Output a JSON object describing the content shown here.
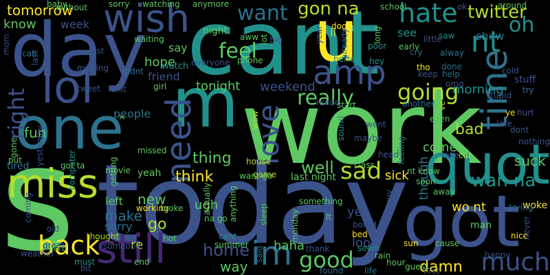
{
  "words": [
    {
      "text": "today",
      "color": "#3b528b"
    },
    {
      "text": "work",
      "color": "#5ec962"
    },
    {
      "text": "cant",
      "color": "#21918c"
    },
    {
      "text": "day",
      "color": "#3b528b"
    },
    {
      "text": "u",
      "color": "#fde725"
    },
    {
      "text": "got",
      "color": "#3b528b"
    },
    {
      "text": "one",
      "color": "#2c728e"
    },
    {
      "text": "s",
      "color": "#5ec962"
    },
    {
      "text": "miss",
      "color": "#b5de2b"
    },
    {
      "text": "quot",
      "color": "#21918c"
    },
    {
      "text": "wish",
      "color": "#3b528b"
    },
    {
      "text": "m",
      "color": "#21918c"
    },
    {
      "text": "lol",
      "color": "#3b528b"
    },
    {
      "text": "still",
      "color": "#482878"
    },
    {
      "text": "time",
      "color": "#2c728e"
    },
    {
      "text": "nt",
      "color": "#21918c"
    },
    {
      "text": "amp",
      "color": "#3b528b"
    },
    {
      "text": "love",
      "color": "#3b528b"
    },
    {
      "text": "need",
      "color": "#3b528b"
    },
    {
      "text": "going",
      "color": "#b5de2b"
    },
    {
      "text": "back",
      "color": "#fde725"
    },
    {
      "text": "good",
      "color": "#5ec962"
    },
    {
      "text": "much",
      "color": "#3b528b"
    },
    {
      "text": "im",
      "color": "#2c728e"
    },
    {
      "text": "hate",
      "color": "#21918c"
    },
    {
      "text": "twitter",
      "color": "#b5de2b"
    },
    {
      "text": "oh",
      "color": "#21918c"
    },
    {
      "text": "want",
      "color": "#2c728e"
    },
    {
      "text": "gon na",
      "color": "#b5de2b"
    },
    {
      "text": "feel",
      "color": "#5ec962"
    },
    {
      "text": "sad",
      "color": "#b5de2b"
    },
    {
      "text": "really",
      "color": "#5ec962"
    },
    {
      "text": "right",
      "color": "#3b528b"
    },
    {
      "text": "fun",
      "color": "#5ec962"
    },
    {
      "text": "think",
      "color": "#fde725"
    },
    {
      "text": "thing",
      "color": "#5ec962"
    },
    {
      "text": "well",
      "color": "#5ec962"
    },
    {
      "text": "home",
      "color": "#3b528b"
    },
    {
      "text": "wan na",
      "color": "#21918c"
    },
    {
      "text": "tomorrow",
      "color": "#fde725"
    },
    {
      "text": "know",
      "color": "#5ec962"
    },
    {
      "text": "bad",
      "color": "#b5de2b"
    },
    {
      "text": "new",
      "color": "#5ec962"
    },
    {
      "text": "make",
      "color": "#2c728e"
    },
    {
      "text": "go",
      "color": "#b5de2b"
    },
    {
      "text": "sorry",
      "color": "#2c728e"
    },
    {
      "text": "ugh",
      "color": "#5ec962"
    },
    {
      "text": "tonight",
      "color": "#5ec962"
    },
    {
      "text": "friend",
      "color": "#3b528b"
    },
    {
      "text": "hope",
      "color": "#5ec962"
    },
    {
      "text": "say",
      "color": "#5ec962"
    },
    {
      "text": "week",
      "color": "#3b528b"
    },
    {
      "text": "weekend",
      "color": "#3b528b"
    },
    {
      "text": "morning",
      "color": "#21918c"
    },
    {
      "text": "people",
      "color": "#2c728e"
    },
    {
      "text": "sick",
      "color": "#fde725"
    },
    {
      "text": "suck",
      "color": "#5ec962"
    },
    {
      "text": "come",
      "color": "#5ec962"
    },
    {
      "text": "though",
      "color": "#2c728e"
    },
    {
      "text": "wo nt",
      "color": "#fde725"
    },
    {
      "text": "yet",
      "color": "#3b528b"
    },
    {
      "text": "look",
      "color": "#3b528b"
    },
    {
      "text": "haha",
      "color": "#5ec962"
    },
    {
      "text": "damn",
      "color": "#fde725"
    },
    {
      "text": "way",
      "color": "#5ec962"
    },
    {
      "text": "left",
      "color": "#5ec962"
    },
    {
      "text": "tired",
      "color": "#2c728e"
    },
    {
      "text": "yeah",
      "color": "#5ec962"
    },
    {
      "text": "re",
      "color": "#b5de2b"
    },
    {
      "text": "night",
      "color": "#5ec962"
    },
    {
      "text": "see",
      "color": "#21918c"
    },
    {
      "text": "show",
      "color": "#2c728e"
    },
    {
      "text": "ll",
      "color": "#b5de2b"
    },
    {
      "text": "watch",
      "color": "#21918c"
    },
    {
      "text": "working",
      "color": "#fde725"
    },
    {
      "text": "woke",
      "color": "#fde725"
    },
    {
      "text": "happy",
      "color": "#3b528b"
    },
    {
      "text": "sun",
      "color": "#fde725"
    },
    {
      "text": "last night",
      "color": "#5ec962"
    },
    {
      "text": "something",
      "color": "#5ec962"
    },
    {
      "text": "cant",
      "color": "#21918c"
    },
    {
      "text": "bored",
      "color": "#3b528b"
    },
    {
      "text": "game",
      "color": "#b5de2b"
    },
    {
      "text": "house",
      "color": "#b5de2b"
    },
    {
      "text": "missed",
      "color": "#5ec962"
    },
    {
      "text": "movie",
      "color": "#5ec962"
    },
    {
      "text": "got ta",
      "color": "#5ec962"
    },
    {
      "text": "trying",
      "color": "#2c728e"
    },
    {
      "text": "late",
      "color": "#3b528b"
    },
    {
      "text": "better",
      "color": "#21918c"
    },
    {
      "text": "hey",
      "color": "#21918c"
    },
    {
      "text": "dog",
      "color": "#fde725"
    },
    {
      "text": "long",
      "color": "#5ec962"
    },
    {
      "text": "tho",
      "color": "#fde725"
    },
    {
      "text": "phone",
      "color": "#5ec962"
    },
    {
      "text": "school",
      "color": "#5ec962"
    },
    {
      "text": "already",
      "color": "#2c728e"
    },
    {
      "text": "poor",
      "color": "#21918c"
    },
    {
      "text": "early",
      "color": "#5ec962"
    },
    {
      "text": "cry",
      "color": "#2c728e"
    },
    {
      "text": "keep",
      "color": "#3b528b"
    },
    {
      "text": "stuff",
      "color": "#3b528b"
    },
    {
      "text": "try",
      "color": "#2c728e"
    },
    {
      "text": "cold",
      "color": "#3b528b"
    },
    {
      "text": "hurt",
      "color": "#3b528b"
    },
    {
      "text": "ye",
      "color": "#fde725"
    },
    {
      "text": "ve",
      "color": "#b5de2b"
    },
    {
      "text": "stupid",
      "color": "#3b528b"
    },
    {
      "text": "even",
      "color": "#5ec962"
    },
    {
      "text": "feeling",
      "color": "#2c728e"
    },
    {
      "text": "take",
      "color": "#3b528b"
    },
    {
      "text": "car",
      "color": "#b5de2b"
    },
    {
      "text": "nothing",
      "color": "#3b528b"
    },
    {
      "text": "dont",
      "color": "#3b528b"
    },
    {
      "text": "another",
      "color": "#2c728e"
    },
    {
      "text": "start",
      "color": "#5ec962"
    },
    {
      "text": "head",
      "color": "#3b528b"
    },
    {
      "text": "class",
      "color": "#5ec962"
    },
    {
      "text": "nt know",
      "color": "#5ec962"
    },
    {
      "text": "soon",
      "color": "#5ec962"
    },
    {
      "text": "away",
      "color": "#5ec962"
    },
    {
      "text": "guy",
      "color": "#3b528b"
    },
    {
      "text": "maybe",
      "color": "#3b528b"
    },
    {
      "text": "sound",
      "color": "#21918c"
    },
    {
      "text": "actually",
      "color": "#5ec962"
    },
    {
      "text": "anything",
      "color": "#5ec962"
    },
    {
      "text": "sleep",
      "color": "#5ec962"
    },
    {
      "text": "lt",
      "color": "#5ec962"
    },
    {
      "text": "bed",
      "color": "#fde725"
    },
    {
      "text": "seem",
      "color": "#21918c"
    },
    {
      "text": "rain",
      "color": "#5ec962"
    },
    {
      "text": "hour",
      "color": "#5ec962"
    },
    {
      "text": "life",
      "color": "#2c728e"
    },
    {
      "text": "found",
      "color": "#2c728e"
    },
    {
      "text": "thank",
      "color": "#3b528b"
    },
    {
      "text": "guess",
      "color": "#5ec962"
    },
    {
      "text": "first",
      "color": "#3b528b"
    },
    {
      "text": "cause",
      "color": "#5ec962"
    },
    {
      "text": "man",
      "color": "#5ec962"
    },
    {
      "text": "nice",
      "color": "#fde725"
    },
    {
      "text": "never",
      "color": "#3b528b"
    },
    {
      "text": "monday",
      "color": "#5ec962"
    },
    {
      "text": "hot",
      "color": "#5ec962"
    },
    {
      "text": "summer",
      "color": "#5ec962"
    },
    {
      "text": "said",
      "color": "#2c728e"
    },
    {
      "text": "na go",
      "color": "#5ec962"
    },
    {
      "text": "broke",
      "color": "#5ec962"
    },
    {
      "text": "thought",
      "color": "#b5de2b"
    },
    {
      "text": "someone",
      "color": "#3b528b"
    },
    {
      "text": "end",
      "color": "#5ec962"
    },
    {
      "text": "hard",
      "color": "#5ec962"
    },
    {
      "text": "weather",
      "color": "#3b528b"
    },
    {
      "text": "must",
      "color": "#21918c"
    },
    {
      "text": "bit",
      "color": "#3b528b"
    },
    {
      "text": "coming",
      "color": "#3b528b"
    },
    {
      "text": "old",
      "color": "#3b528b"
    },
    {
      "text": "put",
      "color": "#5ec962"
    },
    {
      "text": "gone",
      "color": "#5ec962"
    },
    {
      "text": "computer",
      "color": "#21918c"
    },
    {
      "text": "getting",
      "color": "#5ec962"
    },
    {
      "text": "great",
      "color": "#3b528b"
    },
    {
      "text": "didnt",
      "color": "#2c728e"
    },
    {
      "text": "shit",
      "color": "#3b528b"
    },
    {
      "text": "girl",
      "color": "#5ec962"
    },
    {
      "text": "tweet",
      "color": "#3b528b"
    },
    {
      "text": "missing",
      "color": "#3b528b"
    },
    {
      "text": "last",
      "color": "#3b528b"
    },
    {
      "text": "lost",
      "color": "#3b528b"
    },
    {
      "text": "call",
      "color": "#2c728e"
    },
    {
      "text": "mom",
      "color": "#3b528b"
    },
    {
      "text": "waiting",
      "color": "#5ec962"
    },
    {
      "text": "baby",
      "color": "#5ec962"
    },
    {
      "text": "without",
      "color": "#5ec962"
    },
    {
      "text": "sorry",
      "color": "#5ec962"
    },
    {
      "text": "watching",
      "color": "#5ec962"
    },
    {
      "text": "anymore",
      "color": "#5ec962"
    },
    {
      "text": "everyone",
      "color": "#3b528b"
    },
    {
      "text": "aww",
      "color": "#5ec962"
    },
    {
      "text": "lot",
      "color": "#5ec962"
    },
    {
      "text": "big",
      "color": "#3b528b"
    },
    {
      "text": "made",
      "color": "#3b528b"
    },
    {
      "text": "year",
      "color": "#3b528b"
    },
    {
      "text": "ok",
      "color": "#3b528b"
    },
    {
      "text": "around",
      "color": "#5ec962"
    },
    {
      "text": "saw",
      "color": "#21918c"
    },
    {
      "text": "little",
      "color": "#3b528b"
    },
    {
      "text": "alway",
      "color": "#2c728e"
    },
    {
      "text": "done",
      "color": "#2c728e"
    },
    {
      "text": "help",
      "color": "#2c728e"
    },
    {
      "text": "omg",
      "color": "#3b528b"
    },
    {
      "text": "went",
      "color": "#3b528b"
    },
    {
      "text": "wow",
      "color": "#b5de2b"
    },
    {
      "text": "x",
      "color": "#5ec962"
    },
    {
      "text": "yesterday",
      "color": "#3b528b"
    },
    {
      "text": "want go",
      "color": "#5ec962"
    },
    {
      "text": "ur",
      "color": "#3b528b"
    },
    {
      "text": "mean",
      "color": "#5ec962"
    }
  ]
}
